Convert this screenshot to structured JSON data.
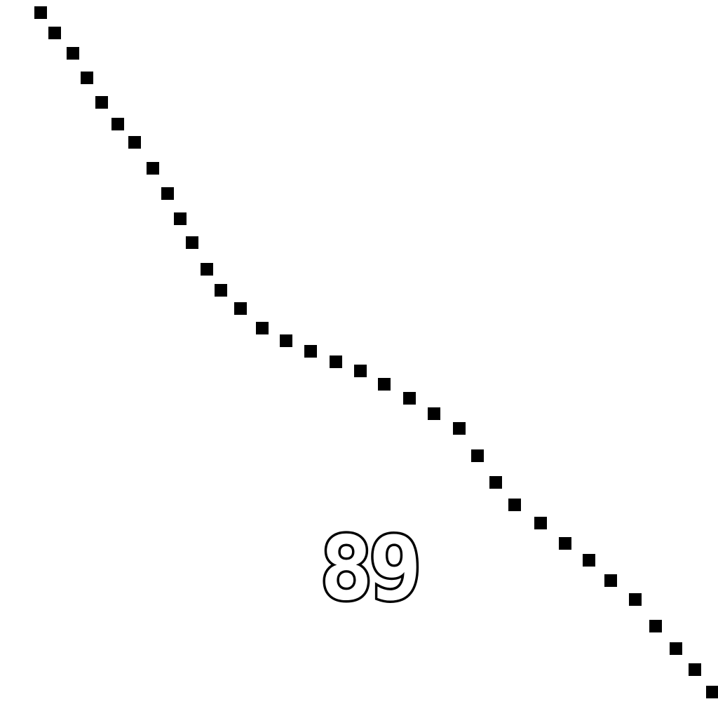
{
  "label": {
    "text": "89"
  },
  "colors": {
    "background": "#ffffff",
    "ink": "#000000"
  }
}
